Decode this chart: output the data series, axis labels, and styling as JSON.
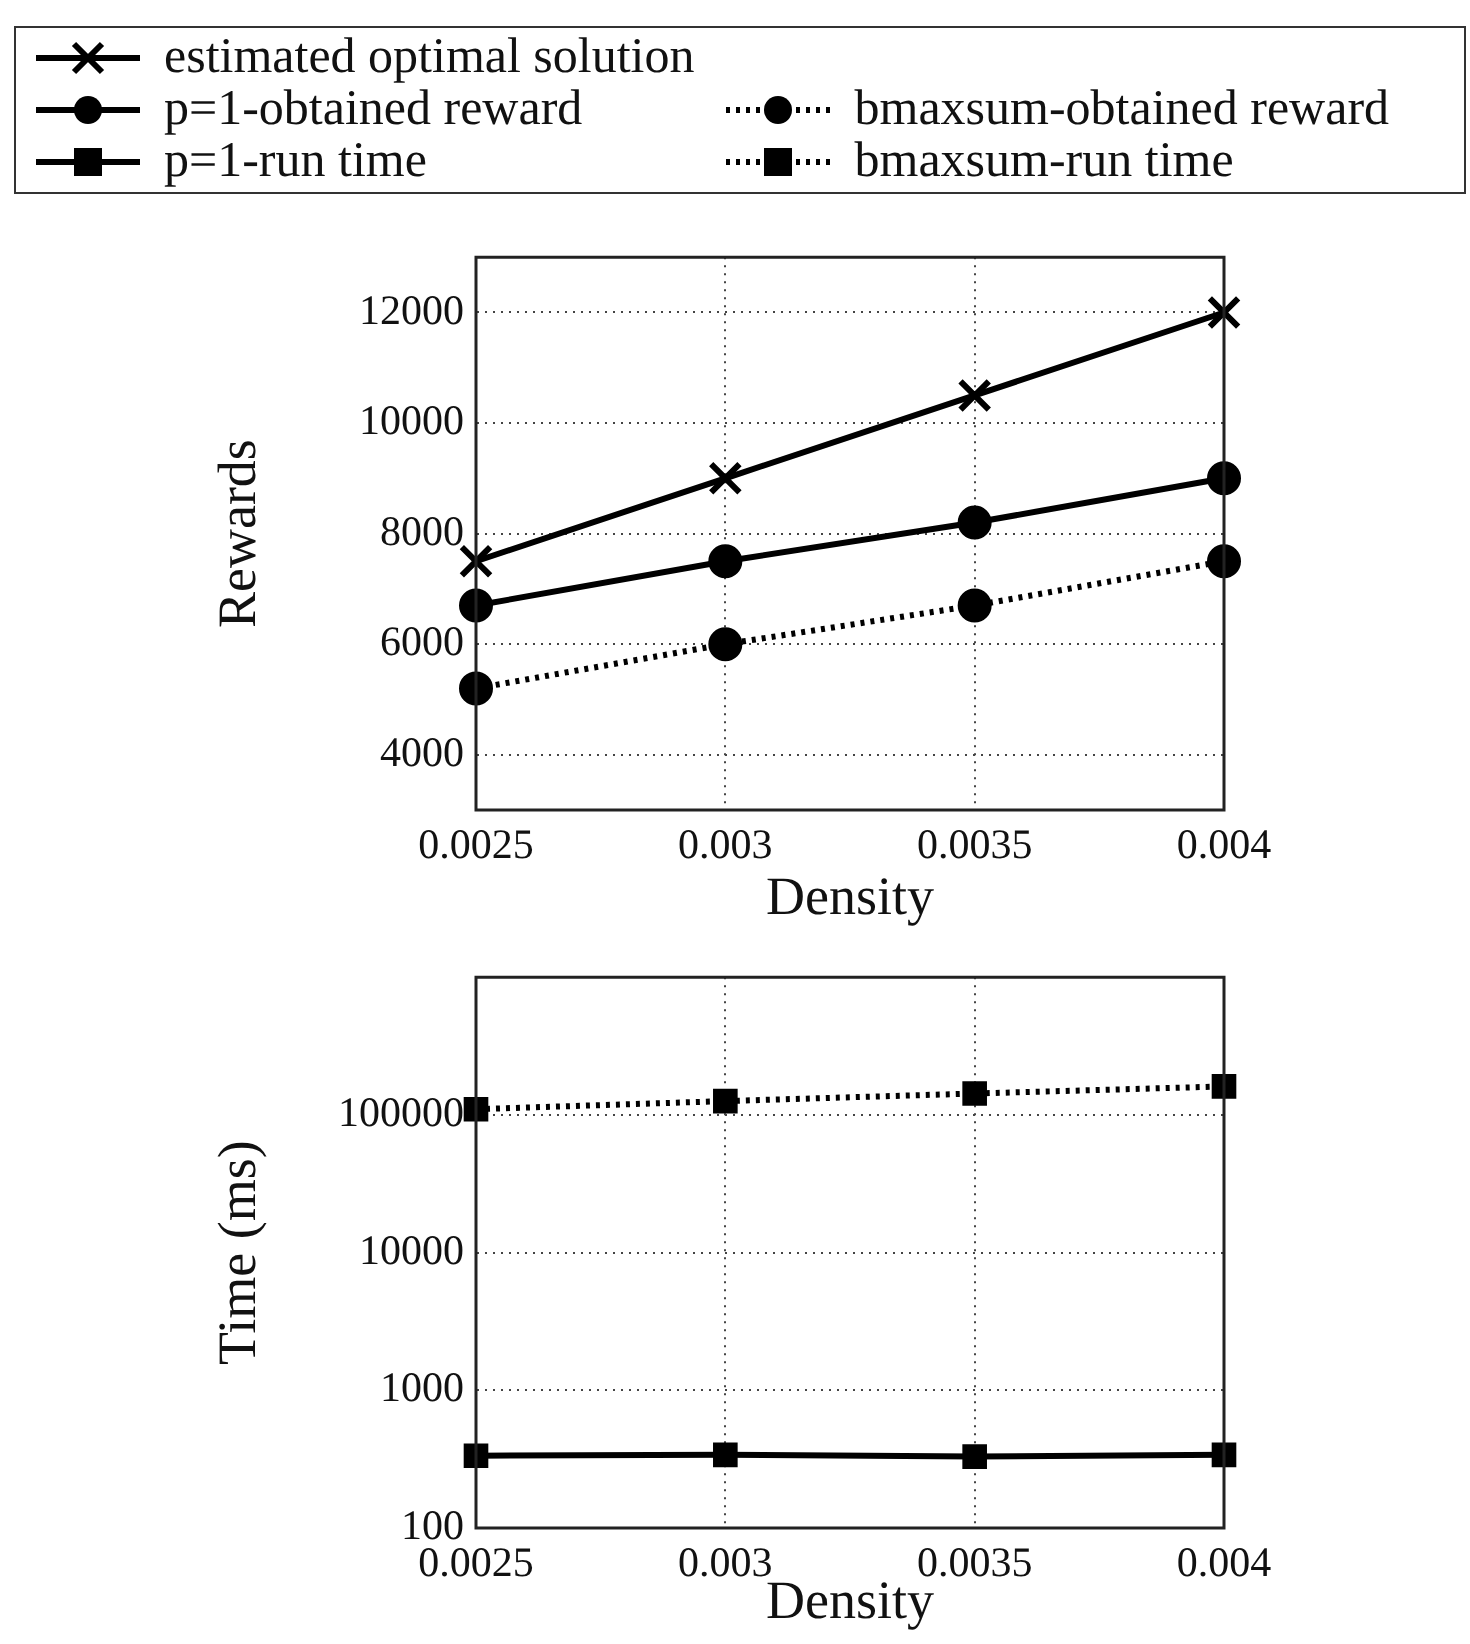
{
  "chart_data": [
    {
      "type": "line",
      "legend": "top",
      "grid": true,
      "xlabel": "Density",
      "ylabel": "Rewards",
      "x": [
        0.0025,
        0.003,
        0.0035,
        0.004
      ],
      "xlim": [
        0.0025,
        0.004
      ],
      "xticks": [
        0.0025,
        0.003,
        0.0035,
        0.004
      ],
      "ylim": [
        3000,
        13000
      ],
      "yticks": [
        4000,
        6000,
        8000,
        10000,
        12000
      ],
      "series": [
        {
          "name": "estimated optimal solution",
          "color": "#000000",
          "marker": "cross",
          "line_style": "solid",
          "values": [
            7500,
            9000,
            10500,
            12000
          ]
        },
        {
          "name": "p=1-obtained reward",
          "color": "#000000",
          "marker": "circle",
          "line_style": "solid",
          "values": [
            6700,
            7500,
            8200,
            9000
          ]
        },
        {
          "name": "bmaxsum-obtained reward",
          "color": "#000000",
          "marker": "circle",
          "line_style": "dotted",
          "values": [
            5200,
            6000,
            6700,
            7500
          ]
        }
      ]
    },
    {
      "type": "line",
      "legend": "top",
      "grid": true,
      "log": "y",
      "xlabel": "Density",
      "ylabel": "Time (ms)",
      "x": [
        0.0025,
        0.003,
        0.0035,
        0.004
      ],
      "xlim": [
        0.0025,
        0.004
      ],
      "xticks": [
        0.0025,
        0.003,
        0.0035,
        0.004
      ],
      "ylim": [
        100,
        1000000
      ],
      "yticks": [
        100,
        1000,
        10000,
        100000
      ],
      "series": [
        {
          "name": "p=1-run time",
          "color": "#000000",
          "marker": "square",
          "line_style": "solid",
          "values": [
            335,
            340,
            330,
            340
          ]
        },
        {
          "name": "bmaxsum-run time",
          "color": "#000000",
          "marker": "square",
          "line_style": "dotted",
          "values": [
            110000,
            126000,
            143000,
            161000
          ]
        }
      ]
    }
  ]
}
